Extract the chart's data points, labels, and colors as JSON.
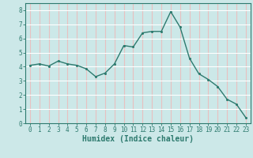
{
  "x": [
    0,
    1,
    2,
    3,
    4,
    5,
    6,
    7,
    8,
    9,
    10,
    11,
    12,
    13,
    14,
    15,
    16,
    17,
    18,
    19,
    20,
    21,
    22,
    23
  ],
  "y": [
    4.1,
    4.2,
    4.05,
    4.4,
    4.2,
    4.1,
    3.85,
    3.3,
    3.55,
    4.2,
    5.5,
    5.4,
    6.4,
    6.5,
    6.5,
    7.9,
    6.8,
    4.6,
    3.5,
    3.1,
    2.6,
    1.7,
    1.35,
    0.4
  ],
  "xlabel": "Humidex (Indice chaleur)",
  "bg_color": "#cce8e8",
  "grid_color": "#ffffff",
  "line_color": "#2d7a6e",
  "marker_color": "#2d7a6e",
  "xlim": [
    -0.5,
    23.5
  ],
  "ylim": [
    0,
    8.5
  ],
  "yticks": [
    0,
    1,
    2,
    3,
    4,
    5,
    6,
    7,
    8
  ],
  "xticks": [
    0,
    1,
    2,
    3,
    4,
    5,
    6,
    7,
    8,
    9,
    10,
    11,
    12,
    13,
    14,
    15,
    16,
    17,
    18,
    19,
    20,
    21,
    22,
    23
  ],
  "tick_fontsize": 5.5,
  "xlabel_fontsize": 7,
  "line_width": 1.0,
  "marker_size": 2.2
}
